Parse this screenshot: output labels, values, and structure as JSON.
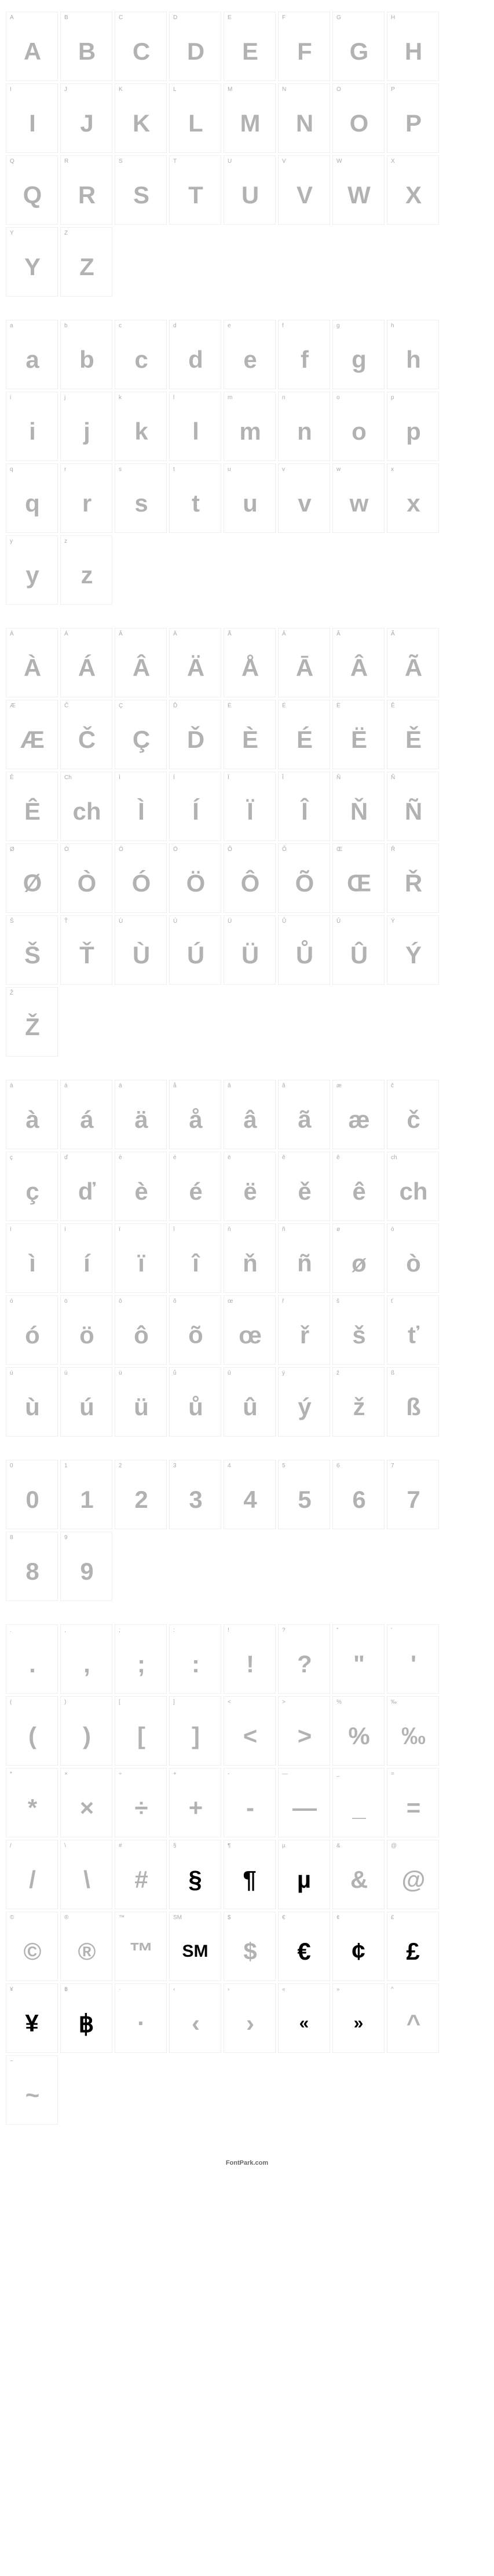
{
  "footer": "FontPark.com",
  "colors": {
    "background": "#ffffff",
    "cell_border": "#eeeeee",
    "label": "#aaaaaa",
    "glyph": "#000000"
  },
  "cell": {
    "width": 90,
    "height": 120
  },
  "stripe": {
    "angle": -45,
    "stripe_width": 2,
    "gap": 3
  },
  "sections": [
    {
      "id": "uppercase",
      "cells": [
        {
          "label": "A",
          "glyph": "A"
        },
        {
          "label": "B",
          "glyph": "B"
        },
        {
          "label": "C",
          "glyph": "C"
        },
        {
          "label": "D",
          "glyph": "D"
        },
        {
          "label": "E",
          "glyph": "E"
        },
        {
          "label": "F",
          "glyph": "F"
        },
        {
          "label": "G",
          "glyph": "G"
        },
        {
          "label": "H",
          "glyph": "H"
        },
        {
          "label": "I",
          "glyph": "I"
        },
        {
          "label": "J",
          "glyph": "J"
        },
        {
          "label": "K",
          "glyph": "K"
        },
        {
          "label": "L",
          "glyph": "L"
        },
        {
          "label": "M",
          "glyph": "M"
        },
        {
          "label": "N",
          "glyph": "N"
        },
        {
          "label": "O",
          "glyph": "O"
        },
        {
          "label": "P",
          "glyph": "P"
        },
        {
          "label": "Q",
          "glyph": "Q"
        },
        {
          "label": "R",
          "glyph": "R"
        },
        {
          "label": "S",
          "glyph": "S"
        },
        {
          "label": "T",
          "glyph": "T"
        },
        {
          "label": "U",
          "glyph": "U"
        },
        {
          "label": "V",
          "glyph": "V"
        },
        {
          "label": "W",
          "glyph": "W"
        },
        {
          "label": "X",
          "glyph": "X"
        },
        {
          "label": "Y",
          "glyph": "Y"
        },
        {
          "label": "Z",
          "glyph": "Z"
        }
      ]
    },
    {
      "id": "lowercase",
      "cells": [
        {
          "label": "a",
          "glyph": "a"
        },
        {
          "label": "b",
          "glyph": "b"
        },
        {
          "label": "c",
          "glyph": "c"
        },
        {
          "label": "d",
          "glyph": "d"
        },
        {
          "label": "e",
          "glyph": "e"
        },
        {
          "label": "f",
          "glyph": "f"
        },
        {
          "label": "g",
          "glyph": "g"
        },
        {
          "label": "h",
          "glyph": "h"
        },
        {
          "label": "i",
          "glyph": "i"
        },
        {
          "label": "j",
          "glyph": "j"
        },
        {
          "label": "k",
          "glyph": "k"
        },
        {
          "label": "l",
          "glyph": "l"
        },
        {
          "label": "m",
          "glyph": "m"
        },
        {
          "label": "n",
          "glyph": "n"
        },
        {
          "label": "o",
          "glyph": "o"
        },
        {
          "label": "p",
          "glyph": "p"
        },
        {
          "label": "q",
          "glyph": "q"
        },
        {
          "label": "r",
          "glyph": "r"
        },
        {
          "label": "s",
          "glyph": "s"
        },
        {
          "label": "t",
          "glyph": "t"
        },
        {
          "label": "u",
          "glyph": "u"
        },
        {
          "label": "v",
          "glyph": "v"
        },
        {
          "label": "w",
          "glyph": "w"
        },
        {
          "label": "x",
          "glyph": "x"
        },
        {
          "label": "y",
          "glyph": "y"
        },
        {
          "label": "z",
          "glyph": "z"
        }
      ]
    },
    {
      "id": "accented-upper",
      "cells": [
        {
          "label": "À",
          "glyph": "À"
        },
        {
          "label": "Á",
          "glyph": "Á"
        },
        {
          "label": "Â",
          "glyph": "Â"
        },
        {
          "label": "Ä",
          "glyph": "Ä"
        },
        {
          "label": "Å",
          "glyph": "Å"
        },
        {
          "label": "Ā",
          "glyph": "Ā"
        },
        {
          "label": "Â",
          "glyph": "Â"
        },
        {
          "label": "Ã",
          "glyph": "Ã"
        },
        {
          "label": "Æ",
          "glyph": "Æ"
        },
        {
          "label": "Č",
          "glyph": "Č"
        },
        {
          "label": "Ç",
          "glyph": "Ç"
        },
        {
          "label": "Ď",
          "glyph": "Ď"
        },
        {
          "label": "È",
          "glyph": "È"
        },
        {
          "label": "É",
          "glyph": "É"
        },
        {
          "label": "Ë",
          "glyph": "Ë"
        },
        {
          "label": "Ě",
          "glyph": "Ě"
        },
        {
          "label": "Ê",
          "glyph": "Ê"
        },
        {
          "label": "Ch",
          "glyph": "ch"
        },
        {
          "label": "Ì",
          "glyph": "Ì"
        },
        {
          "label": "Í",
          "glyph": "Í"
        },
        {
          "label": "Ï",
          "glyph": "Ï"
        },
        {
          "label": "Î",
          "glyph": "Î"
        },
        {
          "label": "Ň",
          "glyph": "Ň"
        },
        {
          "label": "Ñ",
          "glyph": "Ñ"
        },
        {
          "label": "Ø",
          "glyph": "Ø"
        },
        {
          "label": "Ò",
          "glyph": "Ò"
        },
        {
          "label": "Ó",
          "glyph": "Ó"
        },
        {
          "label": "Ö",
          "glyph": "Ö"
        },
        {
          "label": "Ô",
          "glyph": "Ô"
        },
        {
          "label": "Õ",
          "glyph": "Õ"
        },
        {
          "label": "Œ",
          "glyph": "Œ"
        },
        {
          "label": "Ř",
          "glyph": "Ř"
        },
        {
          "label": "Š",
          "glyph": "Š"
        },
        {
          "label": "Ť",
          "glyph": "Ť"
        },
        {
          "label": "Ù",
          "glyph": "Ù"
        },
        {
          "label": "Ú",
          "glyph": "Ú"
        },
        {
          "label": "Ü",
          "glyph": "Ü"
        },
        {
          "label": "Ů",
          "glyph": "Ů"
        },
        {
          "label": "Û",
          "glyph": "Û"
        },
        {
          "label": "Ý",
          "glyph": "Ý"
        },
        {
          "label": "Ž",
          "glyph": "Ž"
        }
      ]
    },
    {
      "id": "accented-lower",
      "cells": [
        {
          "label": "à",
          "glyph": "à"
        },
        {
          "label": "á",
          "glyph": "á"
        },
        {
          "label": "ä",
          "glyph": "ä"
        },
        {
          "label": "å",
          "glyph": "å"
        },
        {
          "label": "â",
          "glyph": "â"
        },
        {
          "label": "ã",
          "glyph": "ã"
        },
        {
          "label": "æ",
          "glyph": "æ"
        },
        {
          "label": "č",
          "glyph": "č"
        },
        {
          "label": "ç",
          "glyph": "ç"
        },
        {
          "label": "ď",
          "glyph": "ď"
        },
        {
          "label": "è",
          "glyph": "è"
        },
        {
          "label": "é",
          "glyph": "é"
        },
        {
          "label": "ë",
          "glyph": "ë"
        },
        {
          "label": "ě",
          "glyph": "ě"
        },
        {
          "label": "ê",
          "glyph": "ê"
        },
        {
          "label": "ch",
          "glyph": "ch"
        },
        {
          "label": "ì",
          "glyph": "ì"
        },
        {
          "label": "í",
          "glyph": "í"
        },
        {
          "label": "ï",
          "glyph": "ï"
        },
        {
          "label": "î",
          "glyph": "î"
        },
        {
          "label": "ň",
          "glyph": "ň"
        },
        {
          "label": "ñ",
          "glyph": "ñ"
        },
        {
          "label": "ø",
          "glyph": "ø"
        },
        {
          "label": "ò",
          "glyph": "ò"
        },
        {
          "label": "ó",
          "glyph": "ó"
        },
        {
          "label": "ö",
          "glyph": "ö"
        },
        {
          "label": "ô",
          "glyph": "ô"
        },
        {
          "label": "õ",
          "glyph": "õ"
        },
        {
          "label": "œ",
          "glyph": "œ"
        },
        {
          "label": "ř",
          "glyph": "ř"
        },
        {
          "label": "š",
          "glyph": "š"
        },
        {
          "label": "ť",
          "glyph": "ť"
        },
        {
          "label": "ù",
          "glyph": "ù"
        },
        {
          "label": "ú",
          "glyph": "ú"
        },
        {
          "label": "ü",
          "glyph": "ü"
        },
        {
          "label": "ů",
          "glyph": "ů"
        },
        {
          "label": "û",
          "glyph": "û"
        },
        {
          "label": "ý",
          "glyph": "ý"
        },
        {
          "label": "ž",
          "glyph": "ž"
        },
        {
          "label": "ß",
          "glyph": "ß"
        }
      ]
    },
    {
      "id": "digits",
      "cells": [
        {
          "label": "0",
          "glyph": "0"
        },
        {
          "label": "1",
          "glyph": "1"
        },
        {
          "label": "2",
          "glyph": "2"
        },
        {
          "label": "3",
          "glyph": "3"
        },
        {
          "label": "4",
          "glyph": "4"
        },
        {
          "label": "5",
          "glyph": "5"
        },
        {
          "label": "6",
          "glyph": "6"
        },
        {
          "label": "7",
          "glyph": "7"
        },
        {
          "label": "8",
          "glyph": "8"
        },
        {
          "label": "9",
          "glyph": "9"
        }
      ]
    },
    {
      "id": "symbols",
      "cells": [
        {
          "label": ".",
          "glyph": "."
        },
        {
          "label": ",",
          "glyph": ","
        },
        {
          "label": ";",
          "glyph": ";"
        },
        {
          "label": ":",
          "glyph": ":"
        },
        {
          "label": "!",
          "glyph": "!"
        },
        {
          "label": "?",
          "glyph": "?"
        },
        {
          "label": "\"",
          "glyph": "\""
        },
        {
          "label": "'",
          "glyph": "'"
        },
        {
          "label": "(",
          "glyph": "("
        },
        {
          "label": ")",
          "glyph": ")"
        },
        {
          "label": "[",
          "glyph": "["
        },
        {
          "label": "]",
          "glyph": "]"
        },
        {
          "label": "<",
          "glyph": "<"
        },
        {
          "label": ">",
          "glyph": ">"
        },
        {
          "label": "%",
          "glyph": "%"
        },
        {
          "label": "‰",
          "glyph": "‰"
        },
        {
          "label": "*",
          "glyph": "*"
        },
        {
          "label": "×",
          "glyph": "×"
        },
        {
          "label": "÷",
          "glyph": "÷"
        },
        {
          "label": "+",
          "glyph": "+"
        },
        {
          "label": "-",
          "glyph": "-"
        },
        {
          "label": "—",
          "glyph": "—"
        },
        {
          "label": "_",
          "glyph": "_"
        },
        {
          "label": "=",
          "glyph": "="
        },
        {
          "label": "/",
          "glyph": "/"
        },
        {
          "label": "\\",
          "glyph": "\\"
        },
        {
          "label": "#",
          "glyph": "#"
        },
        {
          "label": "§",
          "glyph": "§",
          "plain": true
        },
        {
          "label": "¶",
          "glyph": "¶",
          "plain": true
        },
        {
          "label": "µ",
          "glyph": "µ",
          "plain": true
        },
        {
          "label": "&",
          "glyph": "&"
        },
        {
          "label": "@",
          "glyph": "@"
        },
        {
          "label": "©",
          "glyph": "©"
        },
        {
          "label": "®",
          "glyph": "®"
        },
        {
          "label": "™",
          "glyph": "™"
        },
        {
          "label": "SM",
          "glyph": "SM",
          "plain": true,
          "tiny": true
        },
        {
          "label": "$",
          "glyph": "$"
        },
        {
          "label": "€",
          "glyph": "€",
          "plain": true
        },
        {
          "label": "¢",
          "glyph": "¢",
          "plain": true
        },
        {
          "label": "£",
          "glyph": "£",
          "plain": true
        },
        {
          "label": "¥",
          "glyph": "¥",
          "plain": true
        },
        {
          "label": "฿",
          "glyph": "฿",
          "plain": true
        },
        {
          "label": "·",
          "glyph": "·"
        },
        {
          "label": "‹",
          "glyph": "‹"
        },
        {
          "label": "›",
          "glyph": "›"
        },
        {
          "label": "«",
          "glyph": "«",
          "plain": true,
          "tiny": true
        },
        {
          "label": "»",
          "glyph": "»",
          "plain": true,
          "tiny": true
        },
        {
          "label": "^",
          "glyph": "^"
        },
        {
          "label": "~",
          "glyph": "~"
        }
      ]
    }
  ]
}
